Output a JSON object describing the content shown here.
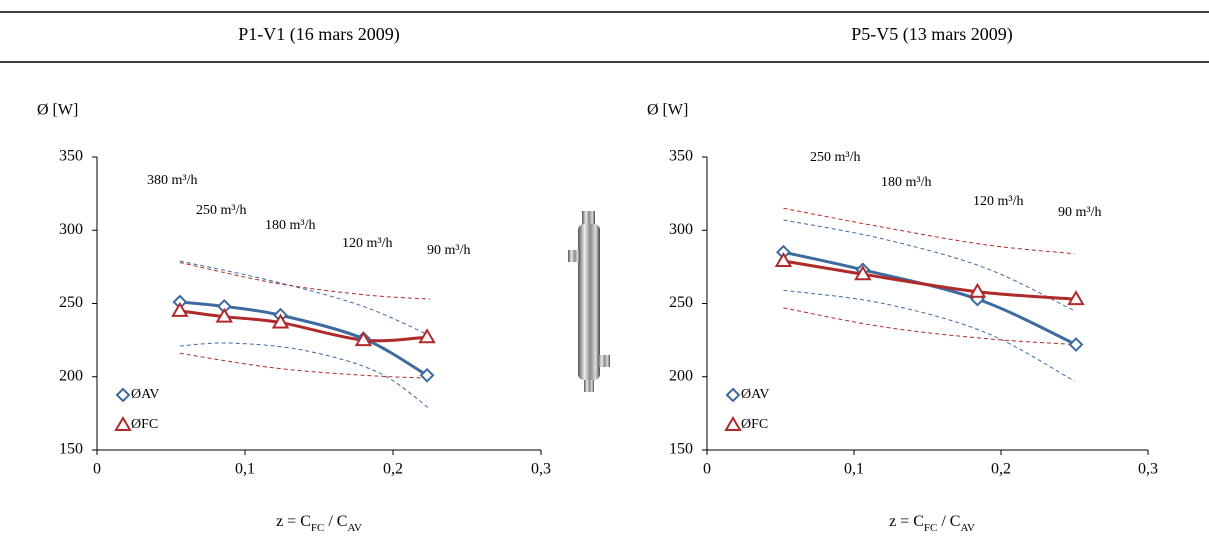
{
  "chart_data": [
    {
      "type": "scatter",
      "title": "P1-V1 (16 mars 2009)",
      "ylabel": "Ø [W]",
      "xlabel": [
        "z = C",
        "FC",
        " / C",
        "AV"
      ],
      "xlim": [
        0,
        0.3
      ],
      "xticks": [
        0,
        {
          "value": 0.1,
          "label": "0,1"
        },
        {
          "value": 0.2,
          "label": "0,2"
        },
        {
          "value": 0.3,
          "label": "0,3"
        }
      ],
      "ylim": [
        150,
        350
      ],
      "yticks": [
        150,
        200,
        250,
        300,
        350
      ],
      "annotations": [
        "380 m³/h",
        "250 m³/h",
        "180 m³/h",
        "120 m³/h",
        "90 m³/h"
      ],
      "series": [
        {
          "name": "ØAV",
          "color": "#3d6aa0",
          "marker": "diamond",
          "x": [
            0.056,
            0.086,
            0.124,
            0.18,
            0.223
          ],
          "values": [
            251,
            248,
            242,
            226,
            201
          ]
        },
        {
          "name": "ØFC",
          "color": "#b02a2a",
          "marker": "triangle",
          "x": [
            0.056,
            0.086,
            0.124,
            0.18,
            0.223
          ],
          "values": [
            245,
            241,
            237,
            225,
            227
          ]
        }
      ],
      "dashed_lines": [
        {
          "color": "#3d6aa0",
          "x": [
            0.056,
            0.12,
            0.18,
            0.225
          ],
          "values": [
            279,
            265,
            248,
            228
          ]
        },
        {
          "color": "#3d6aa0",
          "x": [
            0.056,
            0.09,
            0.14,
            0.19,
            0.225
          ],
          "values": [
            221,
            223,
            218,
            203,
            178
          ]
        },
        {
          "color": "#b02a2a",
          "x": [
            0.056,
            0.12,
            0.18,
            0.225
          ],
          "values": [
            278,
            264,
            256,
            253
          ]
        },
        {
          "color": "#b02a2a",
          "x": [
            0.056,
            0.12,
            0.18,
            0.225
          ],
          "values": [
            216,
            206,
            201,
            199
          ]
        }
      ]
    },
    {
      "type": "scatter",
      "title": "P5-V5 (13 mars 2009)",
      "ylabel": "Ø [W]",
      "xlabel": [
        "z = C",
        "FC",
        " / C",
        "AV"
      ],
      "xlim": [
        0,
        0.3
      ],
      "xticks": [
        0,
        {
          "value": 0.1,
          "label": "0,1"
        },
        {
          "value": 0.2,
          "label": "0,2"
        },
        {
          "value": 0.3,
          "label": "0,3"
        }
      ],
      "ylim": [
        150,
        350
      ],
      "yticks": [
        150,
        200,
        250,
        300,
        350
      ],
      "annotations": [
        "250 m³/h",
        "180 m³/h",
        "120 m³/h",
        "90 m³/h"
      ],
      "series": [
        {
          "name": "ØAV",
          "color": "#3d6aa0",
          "marker": "diamond",
          "x": [
            0.052,
            0.106,
            0.184,
            0.251
          ],
          "values": [
            285,
            273,
            253,
            222
          ]
        },
        {
          "name": "ØFC",
          "color": "#b02a2a",
          "marker": "triangle",
          "x": [
            0.052,
            0.106,
            0.184,
            0.251
          ],
          "values": [
            279,
            270,
            258,
            253
          ]
        }
      ],
      "dashed_lines": [
        {
          "color": "#3d6aa0",
          "x": [
            0.052,
            0.12,
            0.19,
            0.25
          ],
          "values": [
            307,
            294,
            274,
            245
          ]
        },
        {
          "color": "#3d6aa0",
          "x": [
            0.052,
            0.12,
            0.19,
            0.25
          ],
          "values": [
            259,
            250,
            230,
            197
          ]
        },
        {
          "color": "#b02a2a",
          "x": [
            0.052,
            0.12,
            0.19,
            0.25
          ],
          "values": [
            315,
            302,
            290,
            284
          ]
        },
        {
          "color": "#b02a2a",
          "x": [
            0.052,
            0.12,
            0.19,
            0.25
          ],
          "values": [
            247,
            234,
            226,
            222
          ]
        }
      ]
    }
  ]
}
